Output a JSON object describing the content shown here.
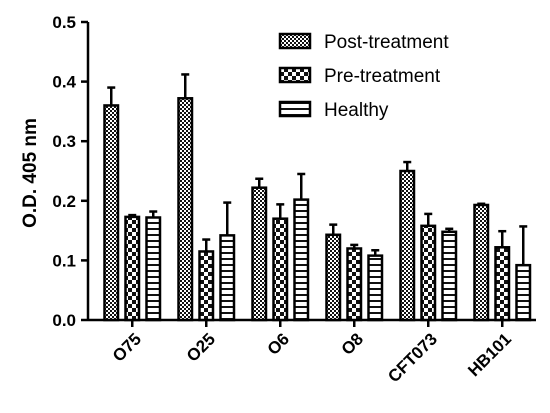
{
  "chart_data": {
    "type": "bar",
    "title": "",
    "xlabel": "",
    "ylabel": "O.D. 405 nm",
    "ylim": [
      0,
      0.5
    ],
    "yticks": [
      "0.0",
      "0.1",
      "0.2",
      "0.3",
      "0.4",
      "0.5"
    ],
    "categories": [
      "O75",
      "O25",
      "O6",
      "O8",
      "CFT073",
      "HB101"
    ],
    "series": [
      {
        "name": "Post-treatment",
        "values": [
          0.36,
          0.372,
          0.222,
          0.143,
          0.25,
          0.193
        ],
        "errors": [
          0.03,
          0.04,
          0.015,
          0.017,
          0.015,
          0.002
        ]
      },
      {
        "name": "Pre-treatment",
        "values": [
          0.173,
          0.115,
          0.17,
          0.12,
          0.158,
          0.122
        ],
        "errors": [
          0.003,
          0.02,
          0.024,
          0.006,
          0.02,
          0.027
        ]
      },
      {
        "name": "Healthy",
        "values": [
          0.172,
          0.142,
          0.202,
          0.108,
          0.148,
          0.092
        ],
        "errors": [
          0.01,
          0.055,
          0.043,
          0.009,
          0.005,
          0.065
        ]
      }
    ],
    "legend_position": "top-right",
    "grid": false
  }
}
